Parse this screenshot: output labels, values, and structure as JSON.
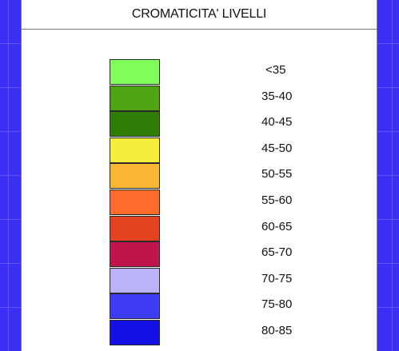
{
  "legend": {
    "title": "CROMATICITA' LIVELLI",
    "items": [
      {
        "label": "<35",
        "color": "#80ff5a"
      },
      {
        "label": "35-40",
        "color": "#4fa511"
      },
      {
        "label": "40-45",
        "color": "#2e7d07"
      },
      {
        "label": "45-50",
        "color": "#f5ee3c"
      },
      {
        "label": "50-55",
        "color": "#fbb635"
      },
      {
        "label": "55-60",
        "color": "#fd6c2b"
      },
      {
        "label": "60-65",
        "color": "#e5431f"
      },
      {
        "label": "65-70",
        "color": "#c0154a"
      },
      {
        "label": "70-75",
        "color": "#b9b3f7"
      },
      {
        "label": "75-80",
        "color": "#3e3bf5"
      },
      {
        "label": "80-85",
        "color": "#1210e4"
      }
    ]
  }
}
